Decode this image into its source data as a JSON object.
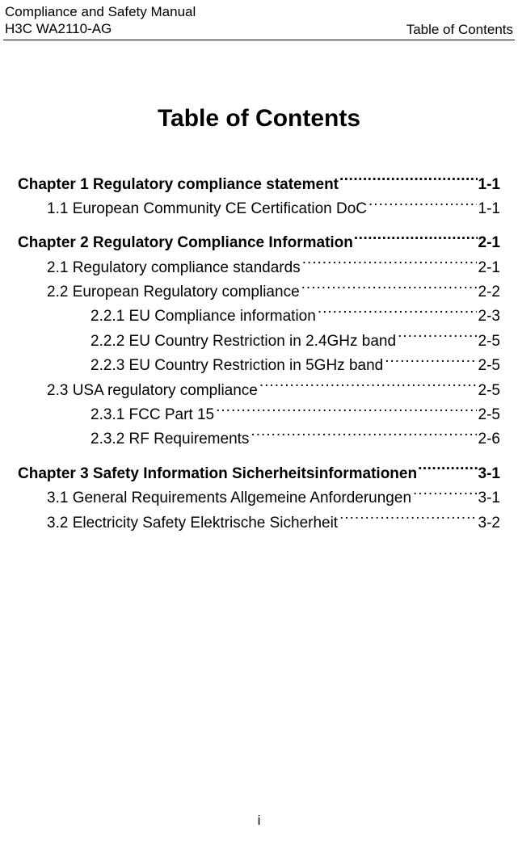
{
  "header": {
    "left_line1": "Compliance and Safety Manual",
    "left_line2": "H3C WA2110-AG",
    "right": "Table of Contents"
  },
  "title": "Table of Contents",
  "page_number": "i",
  "toc": [
    {
      "chapter_title": "Chapter 1 Regulatory compliance statement",
      "chapter_page": "1-1",
      "entries": [
        {
          "level": 1,
          "title": "1.1 European Community CE Certification DoC",
          "page": "1-1"
        }
      ]
    },
    {
      "chapter_title": "Chapter 2 Regulatory Compliance Information",
      "chapter_page": "2-1",
      "entries": [
        {
          "level": 1,
          "title": "2.1 Regulatory compliance standards",
          "page": "2-1"
        },
        {
          "level": 1,
          "title": "2.2 European Regulatory compliance",
          "page": "2-2"
        },
        {
          "level": 2,
          "title": "2.2.1 EU Compliance information",
          "page": "2-3"
        },
        {
          "level": 2,
          "title": "2.2.2 EU Country Restriction in 2.4GHz band",
          "page": "2-5"
        },
        {
          "level": 2,
          "title": "2.2.3 EU Country Restriction in 5GHz band",
          "page": "2-5"
        },
        {
          "level": 1,
          "title": "2.3 USA regulatory compliance",
          "page": "2-5"
        },
        {
          "level": 2,
          "title": "2.3.1 FCC Part 15",
          "page": "2-5"
        },
        {
          "level": 2,
          "title": "2.3.2 RF Requirements",
          "page": "2-6"
        }
      ]
    },
    {
      "chapter_title": "Chapter 3 Safety Information Sicherheitsinformationen",
      "chapter_page": "3-1",
      "entries": [
        {
          "level": 1,
          "title": "3.1 General Requirements Allgemeine Anforderungen",
          "page": "3-1"
        },
        {
          "level": 1,
          "title": "3.2 Electricity Safety Elektrische Sicherheit",
          "page": "3-2"
        }
      ]
    }
  ]
}
